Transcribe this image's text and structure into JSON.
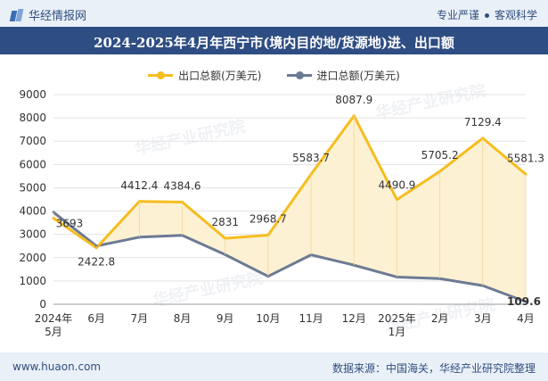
{
  "header": {
    "brand": "华经情报网",
    "tagline_left": "专业严谨",
    "tagline_right": "客观科学"
  },
  "watermark": "华经产业研究院",
  "footer": {
    "website": "www.huaon.com",
    "source": "数据来源：中国海关，华经产业研究院整理"
  },
  "colors": {
    "export": "#f5bd1f",
    "import": "#6c7a94",
    "fill": "#fdf1d3",
    "titlebar": "#2e4d83"
  },
  "chart_data": {
    "type": "line",
    "title": "2024-2025年4月年西宁市(境内目的地/货源地)进、出口额",
    "categories": [
      "2024年\n5月",
      "6月",
      "7月",
      "8月",
      "9月",
      "10月",
      "11月",
      "12月",
      "2025年\n1月",
      "2月",
      "3月",
      "4月"
    ],
    "series": [
      {
        "name": "出口总额(万美元)",
        "values": [
          3693,
          2422.8,
          4412.4,
          4384.6,
          2831,
          2968.7,
          5583.7,
          8087.9,
          4490.9,
          5705.2,
          7129.4,
          5581.3
        ],
        "labels": [
          "3693",
          "2422.8",
          "4412.4",
          "4384.6",
          "2831",
          "2968.7",
          "5583.7",
          "8087.9",
          "4490.9",
          "5705.2",
          "7129.4",
          "5581.3"
        ]
      },
      {
        "name": "进口总额(万美元)",
        "values": [
          3950,
          2500,
          2880,
          2960,
          2130,
          1200,
          2120,
          1680,
          1170,
          1100,
          800,
          109.6
        ],
        "labels": [
          "",
          "",
          "",
          "",
          "",
          "",
          "",
          "",
          "",
          "",
          "",
          "109.6"
        ]
      }
    ],
    "ylim": [
      0,
      9000
    ],
    "yticks": [
      0,
      1000,
      2000,
      3000,
      4000,
      5000,
      6000,
      7000,
      8000,
      9000
    ],
    "legend": "top-center",
    "fill_between": true
  }
}
